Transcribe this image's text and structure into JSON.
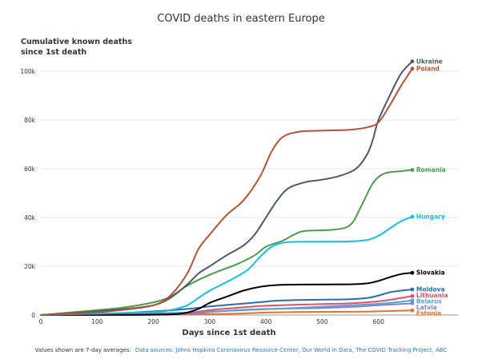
{
  "chart_data": {
    "type": "line",
    "title": "COVID deaths in eastern Europe",
    "ylabel_lines": [
      "Cumulative known deaths",
      "since 1st death"
    ],
    "xlabel": "Days since 1st death",
    "xlim": [
      0,
      700
    ],
    "ylim": [
      0,
      110000
    ],
    "x_ticks": [
      0,
      100,
      200,
      300,
      400,
      500,
      600
    ],
    "x_tick_labels": [
      "0",
      "100",
      "200",
      "300",
      "400",
      "500",
      "600"
    ],
    "y_ticks": [
      0,
      20000,
      40000,
      60000,
      80000,
      100000
    ],
    "y_tick_labels": [
      "0",
      "20k",
      "40k",
      "60k",
      "80k",
      "100k"
    ],
    "grid": true,
    "series": [
      {
        "name": "Poland",
        "color": "#b5533a",
        "x": [
          0,
          50,
          100,
          150,
          200,
          230,
          260,
          280,
          300,
          330,
          360,
          390,
          410,
          430,
          460,
          500,
          550,
          580,
          600,
          620,
          640,
          660
        ],
        "y": [
          0,
          500,
          1100,
          2200,
          4000,
          8000,
          17000,
          27000,
          33000,
          41000,
          47000,
          57000,
          67000,
          73000,
          75200,
          75600,
          76000,
          77000,
          79000,
          86000,
          94000,
          101000
        ]
      },
      {
        "name": "Ukraine",
        "color": "#4a5b63",
        "x": [
          0,
          50,
          100,
          150,
          200,
          230,
          260,
          280,
          300,
          330,
          360,
          380,
          400,
          420,
          440,
          470,
          500,
          530,
          560,
          580,
          590,
          600,
          620,
          640,
          660
        ],
        "y": [
          0,
          700,
          1500,
          2500,
          4000,
          7000,
          12500,
          17000,
          20000,
          24500,
          28500,
          33000,
          40000,
          47000,
          52000,
          54500,
          55500,
          57000,
          60000,
          66000,
          72000,
          80000,
          90000,
          99000,
          104000
        ]
      },
      {
        "name": "Romania",
        "color": "#4d9a4d",
        "x": [
          0,
          50,
          100,
          150,
          200,
          230,
          260,
          300,
          350,
          380,
          400,
          430,
          450,
          470,
          520,
          550,
          570,
          590,
          610,
          640,
          660
        ],
        "y": [
          0,
          1000,
          2000,
          3200,
          5200,
          7500,
          12000,
          16500,
          21000,
          24500,
          28000,
          30500,
          33000,
          34500,
          35000,
          37000,
          45000,
          54000,
          58000,
          59000,
          59500
        ]
      },
      {
        "name": "Hungary",
        "color": "#14c0e8",
        "x": [
          0,
          100,
          200,
          230,
          260,
          280,
          300,
          330,
          350,
          370,
          390,
          410,
          430,
          450,
          500,
          550,
          580,
          600,
          620,
          640,
          660
        ],
        "y": [
          0,
          600,
          1200,
          2000,
          4000,
          7000,
          10000,
          13500,
          16000,
          19000,
          24000,
          28000,
          29600,
          30000,
          30100,
          30200,
          30800,
          32500,
          35500,
          38500,
          40300
        ]
      },
      {
        "name": "Slovakia",
        "color": "#000000",
        "x": [
          0,
          100,
          200,
          250,
          280,
          300,
          330,
          360,
          390,
          420,
          470,
          550,
          580,
          600,
          620,
          640,
          660
        ],
        "y": [
          0,
          50,
          150,
          600,
          2500,
          5000,
          7500,
          10000,
          11600,
          12300,
          12500,
          12600,
          13000,
          14000,
          15500,
          16800,
          17300
        ]
      },
      {
        "name": "Moldova",
        "color": "#2a6db0",
        "x": [
          0,
          100,
          200,
          260,
          300,
          350,
          400,
          420,
          450,
          500,
          550,
          580,
          600,
          620,
          640,
          660
        ],
        "y": [
          0,
          300,
          1500,
          2500,
          3500,
          4500,
          5500,
          5900,
          6100,
          6300,
          6500,
          7000,
          8000,
          9300,
          10000,
          10500
        ]
      },
      {
        "name": "Lithuania",
        "color": "#e0506e",
        "x": [
          0,
          100,
          200,
          260,
          300,
          350,
          400,
          450,
          500,
          550,
          600,
          640,
          660
        ],
        "y": [
          0,
          80,
          200,
          800,
          2000,
          3000,
          3800,
          4200,
          4500,
          4800,
          5600,
          7000,
          7800
        ]
      },
      {
        "name": "Belarus",
        "color": "#5aa0d0",
        "x": [
          0,
          100,
          200,
          260,
          300,
          350,
          400,
          450,
          500,
          550,
          600,
          640,
          660
        ],
        "y": [
          0,
          300,
          700,
          1000,
          1400,
          1900,
          2400,
          2900,
          3400,
          4000,
          4600,
          5400,
          6000
        ]
      },
      {
        "name": "Latvia",
        "color": "#8b7fd0",
        "x": [
          0,
          100,
          200,
          260,
          300,
          350,
          400,
          450,
          500,
          550,
          600,
          640,
          660
        ],
        "y": [
          0,
          50,
          150,
          400,
          1200,
          2000,
          2500,
          2700,
          2900,
          3300,
          4000,
          4500,
          4800
        ]
      },
      {
        "name": "Estonia",
        "color": "#e8722b",
        "x": [
          0,
          100,
          200,
          260,
          300,
          350,
          400,
          450,
          500,
          550,
          600,
          640,
          660
        ],
        "y": [
          0,
          50,
          100,
          200,
          350,
          600,
          1000,
          1200,
          1300,
          1350,
          1500,
          1800,
          1900
        ]
      }
    ],
    "footer": {
      "note": "Values shown are 7-day averages.",
      "sources": "Data sources: Johns Hopkins Coronavirus Resource Center, Our World in Data, The COVID Tracking Project, ABC"
    }
  }
}
